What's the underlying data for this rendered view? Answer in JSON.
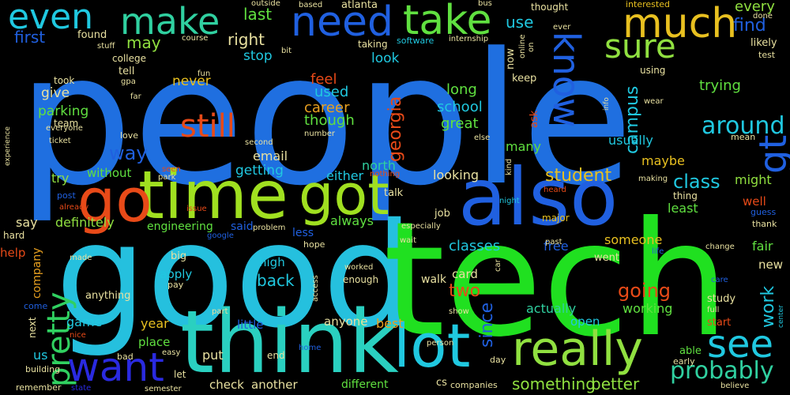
{
  "background": "#000000",
  "words": [
    {
      "text": "people",
      "color": "#1f6fe0",
      "size": 5.4
    },
    {
      "text": "good",
      "color": "#25c0de",
      "size": 4.4
    },
    {
      "text": "tech",
      "color": "#20e020",
      "size": 4.4
    },
    {
      "text": "think",
      "color": "#2ad0c0",
      "size": 2.1
    },
    {
      "text": "also",
      "color": "#2060e0",
      "size": 2.2
    },
    {
      "text": "time",
      "color": "#a0e020",
      "size": 1.8
    },
    {
      "text": "go",
      "color": "#e84a18",
      "size": 1.7
    },
    {
      "text": "got",
      "color": "#a0e020",
      "size": 1.5
    },
    {
      "text": "lot",
      "color": "#20c8e0",
      "size": 1.6
    },
    {
      "text": "really",
      "color": "#90e040",
      "size": 1.2
    },
    {
      "text": "want",
      "color": "#2a2ae0",
      "size": 1.05
    },
    {
      "text": "need",
      "color": "#2060e0",
      "size": 0.95
    },
    {
      "text": "take",
      "color": "#60e040",
      "size": 0.9
    },
    {
      "text": "make",
      "color": "#30d0a0",
      "size": 0.8
    },
    {
      "text": "much",
      "color": "#e8c020",
      "size": 1.0
    },
    {
      "text": "even",
      "color": "#20c8e0",
      "size": 0.85
    },
    {
      "text": "sure",
      "color": "#90e040",
      "size": 0.8
    },
    {
      "text": "know",
      "color": "#2060e0",
      "size": 0.85
    },
    {
      "text": "gt",
      "color": "#2060e0",
      "size": 0.9
    },
    {
      "text": "see",
      "color": "#20c8e0",
      "size": 0.95
    },
    {
      "text": "still",
      "color": "#e84a18",
      "size": 0.75
    },
    {
      "text": "pretty",
      "color": "#30d060",
      "size": 0.8
    },
    {
      "text": "probably",
      "color": "#30d0a0",
      "size": 0.6
    },
    {
      "text": "something",
      "color": "#90e040",
      "size": 0.42
    },
    {
      "text": "better",
      "color": "#90e040",
      "size": 0.42
    },
    {
      "text": "around",
      "color": "#20c8e0",
      "size": 0.6
    },
    {
      "text": "class",
      "color": "#20c8e0",
      "size": 0.5
    },
    {
      "text": "campus",
      "color": "#20c8e0",
      "size": 0.45
    },
    {
      "text": "student",
      "color": "#e8c020",
      "size": 0.45
    },
    {
      "text": "georgia",
      "color": "#e84a18",
      "size": 0.45
    },
    {
      "text": "way",
      "color": "#2060e0",
      "size": 0.45
    },
    {
      "text": "going",
      "color": "#e84a18",
      "size": 0.45
    },
    {
      "text": "work",
      "color": "#20c8e0",
      "size": 0.45
    },
    {
      "text": "since",
      "color": "#2060e0",
      "size": 0.45
    },
    {
      "text": "two",
      "color": "#e84a18",
      "size": 0.45
    },
    {
      "text": "back",
      "color": "#20c8e0",
      "size": 0.4
    },
    {
      "text": "classes",
      "color": "#20c8e0",
      "size": 0.4
    },
    {
      "text": "first",
      "color": "#2060e0",
      "size": 0.4
    },
    {
      "text": "find",
      "color": "#2060e0",
      "size": 0.45
    },
    {
      "text": "last",
      "color": "#60e040",
      "size": 0.4
    },
    {
      "text": "right",
      "color": "#e8e0a0",
      "size": 0.4
    },
    {
      "text": "may",
      "color": "#90e040",
      "size": 0.4
    },
    {
      "text": "use",
      "color": "#20c8e0",
      "size": 0.4
    },
    {
      "text": "every",
      "color": "#90e040",
      "size": 0.4
    },
    {
      "text": "trying",
      "color": "#60e040",
      "size": 0.38
    },
    {
      "text": "great",
      "color": "#60e040",
      "size": 0.38
    },
    {
      "text": "school",
      "color": "#20c8e0",
      "size": 0.38
    },
    {
      "text": "long",
      "color": "#60e040",
      "size": 0.38
    },
    {
      "text": "feel",
      "color": "#e84a18",
      "size": 0.38
    },
    {
      "text": "used",
      "color": "#20c8e0",
      "size": 0.38
    },
    {
      "text": "career",
      "color": "#e8a020",
      "size": 0.38
    },
    {
      "text": "though",
      "color": "#60e040",
      "size": 0.38
    },
    {
      "text": "look",
      "color": "#20c8e0",
      "size": 0.36
    },
    {
      "text": "stop",
      "color": "#20c8e0",
      "size": 0.36
    },
    {
      "text": "never",
      "color": "#e8c020",
      "size": 0.36
    },
    {
      "text": "give",
      "color": "#e8e0a0",
      "size": 0.36
    },
    {
      "text": "parking",
      "color": "#60e040",
      "size": 0.36
    },
    {
      "text": "getting",
      "color": "#20c8e0",
      "size": 0.36
    },
    {
      "text": "email",
      "color": "#e8e0a0",
      "size": 0.34
    },
    {
      "text": "either",
      "color": "#20c8e0",
      "size": 0.34
    },
    {
      "text": "north",
      "color": "#30d0a0",
      "size": 0.34
    },
    {
      "text": "looking",
      "color": "#e8e0a0",
      "size": 0.34
    },
    {
      "text": "many",
      "color": "#60e040",
      "size": 0.34
    },
    {
      "text": "usually",
      "color": "#20c8e0",
      "size": 0.34
    },
    {
      "text": "maybe",
      "color": "#e8c020",
      "size": 0.34
    },
    {
      "text": "might",
      "color": "#90e040",
      "size": 0.34
    },
    {
      "text": "least",
      "color": "#60e040",
      "size": 0.34
    },
    {
      "text": "well",
      "color": "#e84a18",
      "size": 0.32
    },
    {
      "text": "try",
      "color": "#90e040",
      "size": 0.34
    },
    {
      "text": "without",
      "color": "#60e040",
      "size": 0.32
    },
    {
      "text": "definitely",
      "color": "#90e040",
      "size": 0.34
    },
    {
      "text": "say",
      "color": "#e8e0a0",
      "size": 0.34
    },
    {
      "text": "always",
      "color": "#60e040",
      "size": 0.34
    },
    {
      "text": "free",
      "color": "#2060e0",
      "size": 0.34
    },
    {
      "text": "someone",
      "color": "#e8c020",
      "size": 0.34
    },
    {
      "text": "fair",
      "color": "#60e040",
      "size": 0.34
    },
    {
      "text": "new",
      "color": "#e8e0a0",
      "size": 0.32
    },
    {
      "text": "help",
      "color": "#e84a18",
      "size": 0.32
    },
    {
      "text": "company",
      "color": "#e8a020",
      "size": 0.3
    },
    {
      "text": "high",
      "color": "#20c8e0",
      "size": 0.32
    },
    {
      "text": "apply",
      "color": "#20c8e0",
      "size": 0.32
    },
    {
      "text": "card",
      "color": "#e8e0a0",
      "size": 0.32
    },
    {
      "text": "actually",
      "color": "#30d0a0",
      "size": 0.34
    },
    {
      "text": "working",
      "color": "#60e040",
      "size": 0.34
    },
    {
      "text": "year",
      "color": "#e8c020",
      "size": 0.34
    },
    {
      "text": "game",
      "color": "#20c8e0",
      "size": 0.34
    },
    {
      "text": "anyone",
      "color": "#e8e0a0",
      "size": 0.32
    },
    {
      "text": "best",
      "color": "#e8a020",
      "size": 0.34
    },
    {
      "text": "open",
      "color": "#20c8e0",
      "size": 0.32
    },
    {
      "text": "place",
      "color": "#60e040",
      "size": 0.32
    },
    {
      "text": "little",
      "color": "#2060e0",
      "size": 0.32
    },
    {
      "text": "put",
      "color": "#e8e0a0",
      "size": 0.34
    },
    {
      "text": "check",
      "color": "#e8e0a0",
      "size": 0.32
    },
    {
      "text": "another",
      "color": "#e8e0a0",
      "size": 0.32
    },
    {
      "text": "different",
      "color": "#60e040",
      "size": 0.3
    },
    {
      "text": "us",
      "color": "#20c8e0",
      "size": 0.34
    },
    {
      "text": "walk",
      "color": "#e8e0a0",
      "size": 0.3
    },
    {
      "text": "job",
      "color": "#e8e0a0",
      "size": 0.28
    },
    {
      "text": "less",
      "color": "#2060e0",
      "size": 0.3
    },
    {
      "text": "said",
      "color": "#2060e0",
      "size": 0.3
    },
    {
      "text": "engineering",
      "color": "#60e040",
      "size": 0.3
    },
    {
      "text": "talk",
      "color": "#e8e0a0",
      "size": 0.28
    },
    {
      "text": "went",
      "color": "#e8e0a0",
      "size": 0.28
    },
    {
      "text": "major",
      "color": "#e8c020",
      "size": 0.26
    },
    {
      "text": "keep",
      "color": "#e8e0a0",
      "size": 0.28
    },
    {
      "text": "ask",
      "color": "#e84a18",
      "size": 0.28
    },
    {
      "text": "now",
      "color": "#e8e0a0",
      "size": 0.28
    },
    {
      "text": "cs",
      "color": "#e8e0a0",
      "size": 0.28
    },
    {
      "text": "companies",
      "color": "#e8e0a0",
      "size": 0.22
    },
    {
      "text": "able",
      "color": "#60e040",
      "size": 0.28
    },
    {
      "text": "early",
      "color": "#e8e0a0",
      "size": 0.22
    },
    {
      "text": "next",
      "color": "#e8e0a0",
      "size": 0.26
    },
    {
      "text": "bad",
      "color": "#e8e0a0",
      "size": 0.22
    },
    {
      "text": "let",
      "color": "#e8e0a0",
      "size": 0.24
    },
    {
      "text": "anything",
      "color": "#e8e0a0",
      "size": 0.26
    },
    {
      "text": "big",
      "color": "#e8e0a0",
      "size": 0.26
    },
    {
      "text": "hard",
      "color": "#e8e0a0",
      "size": 0.24
    },
    {
      "text": "come",
      "color": "#2060e0",
      "size": 0.22
    },
    {
      "text": "building",
      "color": "#e8e0a0",
      "size": 0.22
    },
    {
      "text": "remember",
      "color": "#e8e0a0",
      "size": 0.22
    },
    {
      "text": "state",
      "color": "#2a2ae0",
      "size": 0.2
    },
    {
      "text": "semester",
      "color": "#e8e0a0",
      "size": 0.2
    },
    {
      "text": "end",
      "color": "#e8e0a0",
      "size": 0.24
    },
    {
      "text": "day",
      "color": "#e8e0a0",
      "size": 0.22
    },
    {
      "text": "thing",
      "color": "#e8e0a0",
      "size": 0.24
    },
    {
      "text": "study",
      "color": "#e8e0a0",
      "size": 0.26
    },
    {
      "text": "full",
      "color": "#e8e0a0",
      "size": 0.2
    },
    {
      "text": "start",
      "color": "#e84a18",
      "size": 0.26
    },
    {
      "text": "care",
      "color": "#2060e0",
      "size": 0.2
    },
    {
      "text": "believe",
      "color": "#e8e0a0",
      "size": 0.2
    },
    {
      "text": "center",
      "color": "#20c8e0",
      "size": 0.18
    },
    {
      "text": "change",
      "color": "#e8e0a0",
      "size": 0.2
    },
    {
      "text": "thank",
      "color": "#e8e0a0",
      "size": 0.22
    },
    {
      "text": "guess",
      "color": "#2060e0",
      "size": 0.22
    },
    {
      "text": "heard",
      "color": "#e84a18",
      "size": 0.2
    },
    {
      "text": "making",
      "color": "#e8e0a0",
      "size": 0.2
    },
    {
      "text": "mean",
      "color": "#e8e0a0",
      "size": 0.22
    },
    {
      "text": "night",
      "color": "#20c8e0",
      "size": 0.2
    },
    {
      "text": "kind",
      "color": "#e8e0a0",
      "size": 0.2
    },
    {
      "text": "past",
      "color": "#e8e0a0",
      "size": 0.2
    },
    {
      "text": "life",
      "color": "#2060e0",
      "size": 0.2
    },
    {
      "text": "wear",
      "color": "#e8e0a0",
      "size": 0.2
    },
    {
      "text": "info",
      "color": "#e8e0a0",
      "size": 0.18
    },
    {
      "text": "using",
      "color": "#e8e0a0",
      "size": 0.24
    },
    {
      "text": "interested",
      "color": "#e8c020",
      "size": 0.22
    },
    {
      "text": "test",
      "color": "#e8e0a0",
      "size": 0.22
    },
    {
      "text": "likely",
      "color": "#e8e0a0",
      "size": 0.26
    },
    {
      "text": "done",
      "color": "#e8e0a0",
      "size": 0.2
    },
    {
      "text": "ever",
      "color": "#e8e0a0",
      "size": 0.2
    },
    {
      "text": "thought",
      "color": "#e8e0a0",
      "size": 0.24
    },
    {
      "text": "online",
      "color": "#e8e0a0",
      "size": 0.2
    },
    {
      "text": "on",
      "color": "#e8e0a0",
      "size": 0.2
    },
    {
      "text": "bus",
      "color": "#e8e0a0",
      "size": 0.2
    },
    {
      "text": "internship",
      "color": "#e8e0a0",
      "size": 0.2
    },
    {
      "text": "software",
      "color": "#20c8e0",
      "size": 0.22
    },
    {
      "text": "taking",
      "color": "#e8e0a0",
      "size": 0.24
    },
    {
      "text": "atlanta",
      "color": "#e8e0a0",
      "size": 0.26
    },
    {
      "text": "based",
      "color": "#e8e0a0",
      "size": 0.2
    },
    {
      "text": "outside",
      "color": "#e8e0a0",
      "size": 0.2
    },
    {
      "text": "bit",
      "color": "#e8e0a0",
      "size": 0.2
    },
    {
      "text": "course",
      "color": "#e8e0a0",
      "size": 0.2
    },
    {
      "text": "fun",
      "color": "#e8e0a0",
      "size": 0.2
    },
    {
      "text": "found",
      "color": "#e8e0a0",
      "size": 0.26
    },
    {
      "text": "stuff",
      "color": "#e8e0a0",
      "size": 0.2
    },
    {
      "text": "college",
      "color": "#e8e0a0",
      "size": 0.24
    },
    {
      "text": "tell",
      "color": "#e8e0a0",
      "size": 0.26
    },
    {
      "text": "gpa",
      "color": "#e8e0a0",
      "size": 0.2
    },
    {
      "text": "took",
      "color": "#e8e0a0",
      "size": 0.24
    },
    {
      "text": "far",
      "color": "#e8e0a0",
      "size": 0.2
    },
    {
      "text": "team",
      "color": "#e8e0a0",
      "size": 0.24
    },
    {
      "text": "everyone",
      "color": "#e8e0a0",
      "size": 0.2
    },
    {
      "text": "ticket",
      "color": "#e8e0a0",
      "size": 0.2
    },
    {
      "text": "love",
      "color": "#e8e0a0",
      "size": 0.22
    },
    {
      "text": "second",
      "color": "#e8e0a0",
      "size": 0.2
    },
    {
      "text": "number",
      "color": "#e8e0a0",
      "size": 0.2
    },
    {
      "text": "else",
      "color": "#e8e0a0",
      "size": 0.2
    },
    {
      "text": "experience",
      "color": "#e8e0a0",
      "size": 0.18
    },
    {
      "text": "seen",
      "color": "#e84a18",
      "size": 0.2
    },
    {
      "text": "park",
      "color": "#e8e0a0",
      "size": 0.2
    },
    {
      "text": "nothing",
      "color": "#e84a18",
      "size": 0.2
    },
    {
      "text": "post",
      "color": "#2060e0",
      "size": 0.22
    },
    {
      "text": "already",
      "color": "#e84a18",
      "size": 0.2
    },
    {
      "text": "issue",
      "color": "#e84a18",
      "size": 0.2
    },
    {
      "text": "google",
      "color": "#2060e0",
      "size": 0.2
    },
    {
      "text": "problem",
      "color": "#e8e0a0",
      "size": 0.2
    },
    {
      "text": "especially",
      "color": "#e8e0a0",
      "size": 0.2
    },
    {
      "text": "hope",
      "color": "#e8e0a0",
      "size": 0.22
    },
    {
      "text": "wait",
      "color": "#e8e0a0",
      "size": 0.2
    },
    {
      "text": "worked",
      "color": "#e8e0a0",
      "size": 0.2
    },
    {
      "text": "enough",
      "color": "#e8e0a0",
      "size": 0.24
    },
    {
      "text": "access",
      "color": "#e8e0a0",
      "size": 0.2
    },
    {
      "text": "made",
      "color": "#e8e0a0",
      "size": 0.2
    },
    {
      "text": "pay",
      "color": "#e8e0a0",
      "size": 0.22
    },
    {
      "text": "part",
      "color": "#e8e0a0",
      "size": 0.2
    },
    {
      "text": "nice",
      "color": "#e84a18",
      "size": 0.2
    },
    {
      "text": "easy",
      "color": "#e8e0a0",
      "size": 0.2
    },
    {
      "text": "home",
      "color": "#2060e0",
      "size": 0.2
    },
    {
      "text": "person",
      "color": "#e8e0a0",
      "size": 0.2
    },
    {
      "text": "show",
      "color": "#e8e0a0",
      "size": 0.2
    },
    {
      "text": "car",
      "color": "#e8e0a0",
      "size": 0.2
    }
  ]
}
